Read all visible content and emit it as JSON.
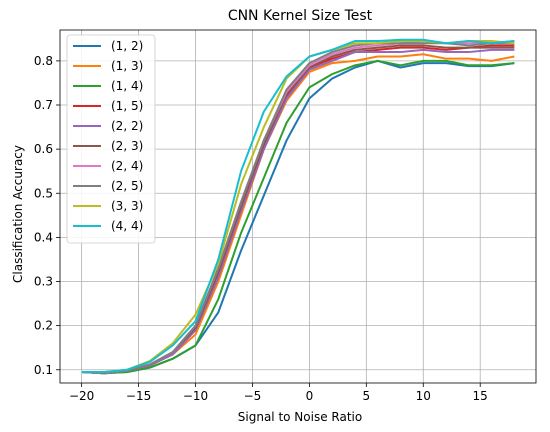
{
  "chart_data": {
    "type": "line",
    "title": "CNN Kernel Size Test",
    "xlabel": "Signal to Noise Ratio",
    "ylabel": "Classification Accuracy",
    "xlim": [
      -21.9,
      19.9
    ],
    "ylim": [
      0.07,
      0.87
    ],
    "xticks": [
      -20,
      -15,
      -10,
      -5,
      0,
      5,
      10,
      15
    ],
    "xtick_labels": [
      "−20",
      "−15",
      "−10",
      "−5",
      "0",
      "5",
      "10",
      "15"
    ],
    "yticks": [
      0.1,
      0.2,
      0.3,
      0.4,
      0.5,
      0.6,
      0.7,
      0.8
    ],
    "ytick_labels": [
      "0.1",
      "0.2",
      "0.3",
      "0.4",
      "0.5",
      "0.6",
      "0.7",
      "0.8"
    ],
    "grid": true,
    "legend_position": "upper-left",
    "x": [
      -20,
      -18,
      -16,
      -14,
      -12,
      -10,
      -8,
      -6,
      -4,
      -2,
      0,
      2,
      4,
      6,
      8,
      10,
      12,
      14,
      16,
      18
    ],
    "series": [
      {
        "name": "(1, 2)",
        "color": "#1f77b4",
        "values": [
          0.095,
          0.092,
          0.095,
          0.105,
          0.125,
          0.155,
          0.23,
          0.37,
          0.495,
          0.62,
          0.715,
          0.76,
          0.785,
          0.8,
          0.785,
          0.795,
          0.795,
          0.788,
          0.788,
          0.795
        ]
      },
      {
        "name": "(1, 3)",
        "color": "#ff7f0e",
        "values": [
          0.095,
          0.092,
          0.098,
          0.11,
          0.135,
          0.18,
          0.3,
          0.45,
          0.6,
          0.71,
          0.775,
          0.795,
          0.8,
          0.81,
          0.81,
          0.815,
          0.805,
          0.805,
          0.8,
          0.81
        ]
      },
      {
        "name": "(1, 4)",
        "color": "#2ca02c",
        "values": [
          0.095,
          0.092,
          0.095,
          0.105,
          0.125,
          0.155,
          0.26,
          0.41,
          0.535,
          0.66,
          0.74,
          0.77,
          0.79,
          0.8,
          0.79,
          0.8,
          0.8,
          0.79,
          0.79,
          0.795
        ]
      },
      {
        "name": "(1, 5)",
        "color": "#d62728",
        "values": [
          0.095,
          0.092,
          0.098,
          0.11,
          0.135,
          0.19,
          0.31,
          0.46,
          0.6,
          0.72,
          0.785,
          0.805,
          0.82,
          0.825,
          0.83,
          0.83,
          0.825,
          0.83,
          0.835,
          0.835
        ]
      },
      {
        "name": "(2, 2)",
        "color": "#9467bd",
        "values": [
          0.095,
          0.092,
          0.098,
          0.11,
          0.135,
          0.19,
          0.31,
          0.46,
          0.6,
          0.715,
          0.78,
          0.8,
          0.82,
          0.82,
          0.82,
          0.825,
          0.82,
          0.82,
          0.825,
          0.825
        ]
      },
      {
        "name": "(2, 3)",
        "color": "#8c564b",
        "values": [
          0.095,
          0.092,
          0.098,
          0.112,
          0.14,
          0.195,
          0.32,
          0.47,
          0.61,
          0.725,
          0.785,
          0.81,
          0.825,
          0.83,
          0.835,
          0.835,
          0.83,
          0.83,
          0.83,
          0.83
        ]
      },
      {
        "name": "(2, 4)",
        "color": "#e377c2",
        "values": [
          0.095,
          0.092,
          0.098,
          0.112,
          0.14,
          0.2,
          0.33,
          0.48,
          0.62,
          0.73,
          0.79,
          0.815,
          0.83,
          0.835,
          0.84,
          0.845,
          0.84,
          0.84,
          0.84,
          0.845
        ]
      },
      {
        "name": "(2, 5)",
        "color": "#7f7f7f",
        "values": [
          0.095,
          0.092,
          0.098,
          0.112,
          0.14,
          0.2,
          0.33,
          0.48,
          0.62,
          0.735,
          0.795,
          0.82,
          0.835,
          0.84,
          0.84,
          0.84,
          0.84,
          0.835,
          0.84,
          0.84
        ]
      },
      {
        "name": "(3, 3)",
        "color": "#bcbd22",
        "values": [
          0.095,
          0.095,
          0.1,
          0.12,
          0.16,
          0.225,
          0.34,
          0.52,
          0.65,
          0.76,
          0.81,
          0.825,
          0.84,
          0.84,
          0.845,
          0.845,
          0.84,
          0.845,
          0.845,
          0.84
        ]
      },
      {
        "name": "(4, 4)",
        "color": "#17becf",
        "values": [
          0.095,
          0.095,
          0.1,
          0.118,
          0.155,
          0.21,
          0.35,
          0.55,
          0.685,
          0.765,
          0.81,
          0.825,
          0.845,
          0.845,
          0.848,
          0.848,
          0.84,
          0.845,
          0.84,
          0.845
        ]
      }
    ]
  }
}
